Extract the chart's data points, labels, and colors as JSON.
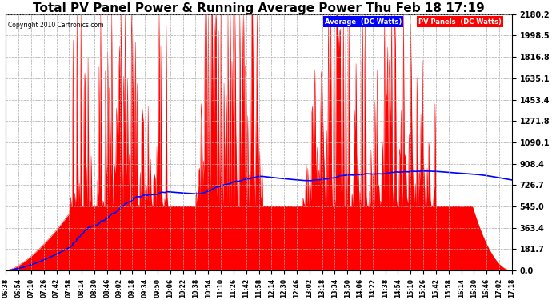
{
  "title": "Total PV Panel Power & Running Average Power Thu Feb 18 17:19",
  "copyright": "Copyright 2010 Cartronics.com",
  "legend_average": "Average  (DC Watts)",
  "legend_pv": "PV Panels  (DC Watts)",
  "y_ticks": [
    0.0,
    181.7,
    363.4,
    545.0,
    726.7,
    908.4,
    1090.1,
    1271.8,
    1453.4,
    1635.1,
    1816.8,
    1998.5,
    2180.2
  ],
  "y_max": 2180.2,
  "y_min": 0.0,
  "background_color": "#ffffff",
  "plot_bg_color": "#ffffff",
  "grid_color": "#aaaaaa",
  "pv_color": "#ff0000",
  "avg_color": "#0000ff",
  "title_fontsize": 11,
  "x_labels": [
    "06:38",
    "06:54",
    "07:10",
    "07:26",
    "07:42",
    "07:58",
    "08:14",
    "08:30",
    "08:46",
    "09:02",
    "09:18",
    "09:34",
    "09:50",
    "10:06",
    "10:22",
    "10:38",
    "10:54",
    "11:10",
    "11:26",
    "11:42",
    "11:58",
    "12:14",
    "12:30",
    "12:46",
    "13:02",
    "13:18",
    "13:34",
    "13:50",
    "14:06",
    "14:22",
    "14:38",
    "14:54",
    "15:10",
    "15:26",
    "15:42",
    "15:58",
    "16:14",
    "16:30",
    "16:46",
    "17:02",
    "17:18"
  ]
}
